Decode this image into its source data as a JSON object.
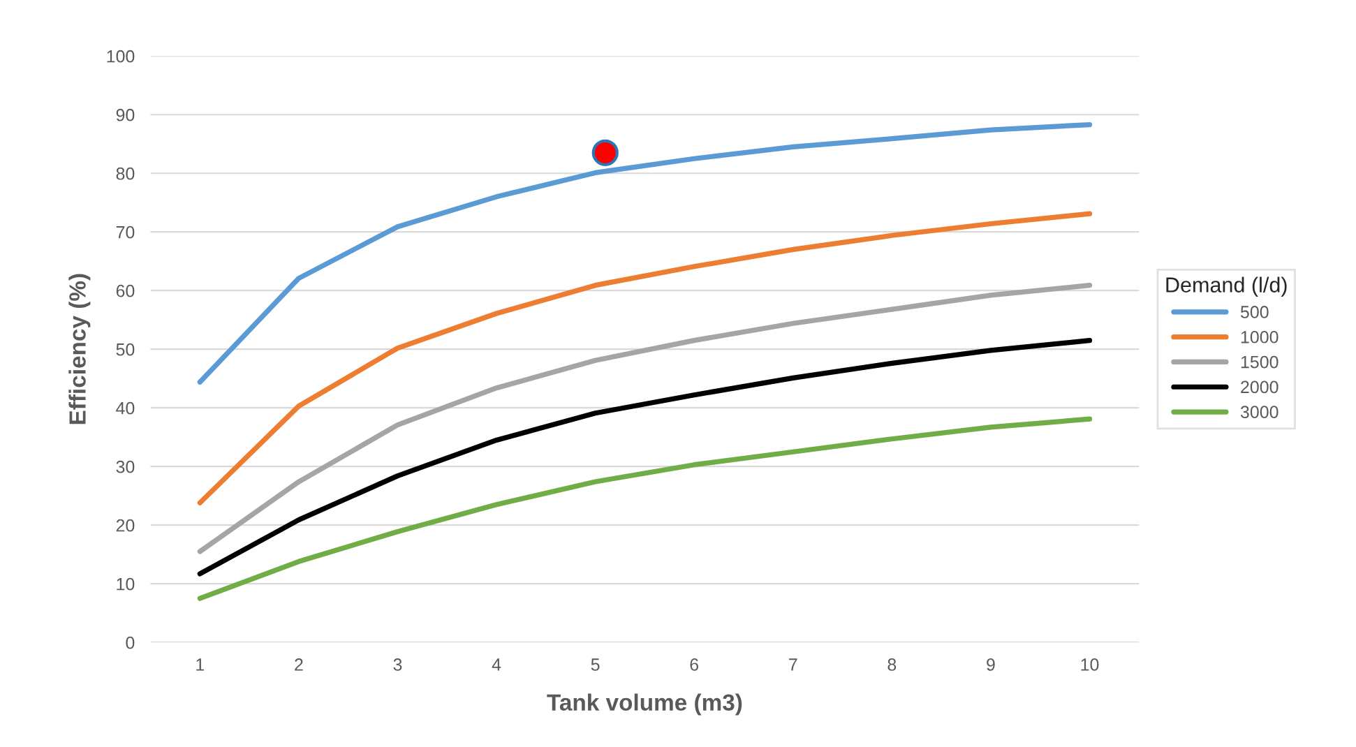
{
  "chart_data": {
    "type": "line",
    "xlabel": "Tank volume (m3)",
    "ylabel": "Efficiency (%)",
    "legend_title": "Demand (l/d)",
    "x": [
      1,
      2,
      3,
      4,
      5,
      6,
      7,
      8,
      9,
      10
    ],
    "xlim": [
      0.5,
      10.5
    ],
    "xticks": [
      1,
      2,
      3,
      4,
      5,
      6,
      7,
      8,
      9,
      10
    ],
    "ylim": [
      0,
      100
    ],
    "yticks": [
      0,
      10,
      20,
      30,
      40,
      50,
      60,
      70,
      80,
      90,
      100
    ],
    "grid": "y",
    "legend": "right",
    "line_style": "solid",
    "series": [
      {
        "name": "500",
        "color": "#5b9bd5",
        "values": [
          44.4,
          62.1,
          70.9,
          76.0,
          80.1,
          82.5,
          84.5,
          85.9,
          87.4,
          88.3
        ]
      },
      {
        "name": "1000",
        "color": "#ed7d31",
        "values": [
          23.8,
          40.3,
          50.2,
          56.1,
          60.9,
          64.1,
          67.0,
          69.4,
          71.4,
          73.1
        ]
      },
      {
        "name": "1500",
        "color": "#a5a5a5",
        "values": [
          15.5,
          27.4,
          37.1,
          43.4,
          48.1,
          51.5,
          54.4,
          56.8,
          59.2,
          60.9
        ]
      },
      {
        "name": "2000",
        "color": "#000000",
        "values": [
          11.7,
          20.9,
          28.4,
          34.5,
          39.1,
          42.2,
          45.1,
          47.6,
          49.8,
          51.5
        ]
      },
      {
        "name": "3000",
        "color": "#70ad47",
        "values": [
          7.5,
          13.8,
          18.9,
          23.5,
          27.4,
          30.3,
          32.5,
          34.7,
          36.7,
          38.1
        ]
      },
      {
        "type": "scatter",
        "color": "#ff0000",
        "x": [
          5.1
        ],
        "values": [
          83.5
        ],
        "marker": "circle"
      }
    ]
  }
}
